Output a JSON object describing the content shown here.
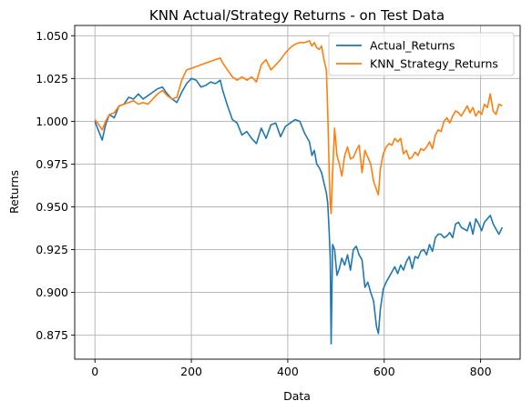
{
  "chart_data": {
    "type": "line",
    "title": "KNN Actual/Strategy Returns - on Test Data",
    "xlabel": "Data",
    "ylabel": "Returns",
    "xlim": [
      -42,
      882
    ],
    "ylim": [
      0.861,
      1.056
    ],
    "xticks": [
      0,
      200,
      400,
      600,
      800
    ],
    "yticks": [
      0.875,
      0.9,
      0.925,
      0.95,
      0.975,
      1.0,
      1.025,
      1.05
    ],
    "ytick_labels": [
      "0.875",
      "0.900",
      "0.925",
      "0.950",
      "0.975",
      "1.000",
      "1.025",
      "1.050"
    ],
    "grid": true,
    "legend_position": "top-right",
    "series": [
      {
        "name": "Actual_Returns",
        "color": "#1f77b4",
        "points": [
          [
            0,
            1.0
          ],
          [
            8,
            0.994
          ],
          [
            15,
            0.989
          ],
          [
            22,
            0.998
          ],
          [
            30,
            1.004
          ],
          [
            40,
            1.002
          ],
          [
            50,
            1.009
          ],
          [
            60,
            1.01
          ],
          [
            70,
            1.014
          ],
          [
            80,
            1.013
          ],
          [
            90,
            1.016
          ],
          [
            100,
            1.013
          ],
          [
            110,
            1.015
          ],
          [
            120,
            1.017
          ],
          [
            130,
            1.019
          ],
          [
            140,
            1.02
          ],
          [
            150,
            1.016
          ],
          [
            160,
            1.013
          ],
          [
            170,
            1.011
          ],
          [
            180,
            1.017
          ],
          [
            190,
            1.022
          ],
          [
            200,
            1.025
          ],
          [
            210,
            1.024
          ],
          [
            220,
            1.02
          ],
          [
            230,
            1.021
          ],
          [
            240,
            1.023
          ],
          [
            250,
            1.022
          ],
          [
            260,
            1.024
          ],
          [
            265,
            1.018
          ],
          [
            275,
            1.009
          ],
          [
            285,
            1.001
          ],
          [
            295,
            0.999
          ],
          [
            305,
            0.992
          ],
          [
            315,
            0.994
          ],
          [
            325,
            0.99
          ],
          [
            335,
            0.987
          ],
          [
            345,
            0.996
          ],
          [
            355,
            0.99
          ],
          [
            365,
            0.998
          ],
          [
            375,
            0.999
          ],
          [
            385,
            0.991
          ],
          [
            395,
            0.997
          ],
          [
            405,
            0.999
          ],
          [
            415,
            1.001
          ],
          [
            425,
            1.0
          ],
          [
            435,
            0.993
          ],
          [
            445,
            0.988
          ],
          [
            450,
            0.98
          ],
          [
            455,
            0.983
          ],
          [
            460,
            0.975
          ],
          [
            465,
            0.973
          ],
          [
            470,
            0.97
          ],
          [
            475,
            0.964
          ],
          [
            480,
            0.958
          ],
          [
            483,
            0.952
          ],
          [
            486,
            0.935
          ],
          [
            488,
            0.92
          ],
          [
            490,
            0.87
          ],
          [
            493,
            0.928
          ],
          [
            497,
            0.925
          ],
          [
            502,
            0.91
          ],
          [
            507,
            0.914
          ],
          [
            512,
            0.92
          ],
          [
            518,
            0.916
          ],
          [
            524,
            0.922
          ],
          [
            530,
            0.913
          ],
          [
            536,
            0.925
          ],
          [
            542,
            0.927
          ],
          [
            548,
            0.922
          ],
          [
            554,
            0.919
          ],
          [
            560,
            0.903
          ],
          [
            566,
            0.906
          ],
          [
            572,
            0.9
          ],
          [
            578,
            0.895
          ],
          [
            584,
            0.88
          ],
          [
            588,
            0.876
          ],
          [
            592,
            0.89
          ],
          [
            598,
            0.902
          ],
          [
            604,
            0.906
          ],
          [
            610,
            0.909
          ],
          [
            616,
            0.912
          ],
          [
            622,
            0.915
          ],
          [
            628,
            0.911
          ],
          [
            634,
            0.916
          ],
          [
            640,
            0.913
          ],
          [
            646,
            0.918
          ],
          [
            652,
            0.921
          ],
          [
            658,
            0.914
          ],
          [
            664,
            0.921
          ],
          [
            670,
            0.92
          ],
          [
            676,
            0.924
          ],
          [
            682,
            0.925
          ],
          [
            688,
            0.922
          ],
          [
            694,
            0.928
          ],
          [
            700,
            0.924
          ],
          [
            706,
            0.932
          ],
          [
            712,
            0.934
          ],
          [
            718,
            0.934
          ],
          [
            724,
            0.932
          ],
          [
            730,
            0.933
          ],
          [
            736,
            0.935
          ],
          [
            742,
            0.932
          ],
          [
            748,
            0.94
          ],
          [
            754,
            0.941
          ],
          [
            760,
            0.938
          ],
          [
            766,
            0.937
          ],
          [
            772,
            0.936
          ],
          [
            778,
            0.941
          ],
          [
            784,
            0.934
          ],
          [
            790,
            0.943
          ],
          [
            796,
            0.94
          ],
          [
            802,
            0.936
          ],
          [
            808,
            0.941
          ],
          [
            814,
            0.943
          ],
          [
            820,
            0.945
          ],
          [
            826,
            0.94
          ],
          [
            832,
            0.937
          ],
          [
            838,
            0.934
          ],
          [
            845,
            0.938
          ]
        ]
      },
      {
        "name": "KNN_Strategy_Returns",
        "color": "#ff7f0e",
        "points": [
          [
            0,
            1.001
          ],
          [
            8,
            0.998
          ],
          [
            15,
            0.995
          ],
          [
            22,
            1.0
          ],
          [
            30,
            1.004
          ],
          [
            40,
            1.005
          ],
          [
            50,
            1.009
          ],
          [
            60,
            1.01
          ],
          [
            70,
            1.011
          ],
          [
            80,
            1.012
          ],
          [
            90,
            1.01
          ],
          [
            100,
            1.011
          ],
          [
            110,
            1.01
          ],
          [
            120,
            1.013
          ],
          [
            130,
            1.016
          ],
          [
            140,
            1.018
          ],
          [
            150,
            1.015
          ],
          [
            160,
            1.013
          ],
          [
            170,
            1.014
          ],
          [
            180,
            1.024
          ],
          [
            190,
            1.03
          ],
          [
            200,
            1.031
          ],
          [
            210,
            1.032
          ],
          [
            220,
            1.033
          ],
          [
            230,
            1.034
          ],
          [
            240,
            1.035
          ],
          [
            250,
            1.036
          ],
          [
            260,
            1.037
          ],
          [
            265,
            1.034
          ],
          [
            275,
            1.03
          ],
          [
            285,
            1.026
          ],
          [
            295,
            1.024
          ],
          [
            305,
            1.026
          ],
          [
            315,
            1.024
          ],
          [
            325,
            1.026
          ],
          [
            335,
            1.023
          ],
          [
            345,
            1.033
          ],
          [
            355,
            1.036
          ],
          [
            365,
            1.03
          ],
          [
            375,
            1.033
          ],
          [
            385,
            1.036
          ],
          [
            395,
            1.04
          ],
          [
            405,
            1.043
          ],
          [
            415,
            1.045
          ],
          [
            425,
            1.046
          ],
          [
            435,
            1.046
          ],
          [
            445,
            1.047
          ],
          [
            450,
            1.044
          ],
          [
            455,
            1.046
          ],
          [
            460,
            1.043
          ],
          [
            465,
            1.042
          ],
          [
            470,
            1.044
          ],
          [
            475,
            1.036
          ],
          [
            480,
            1.03
          ],
          [
            483,
            1.005
          ],
          [
            486,
            0.97
          ],
          [
            488,
            0.952
          ],
          [
            490,
            0.946
          ],
          [
            493,
            0.97
          ],
          [
            497,
            0.996
          ],
          [
            502,
            0.98
          ],
          [
            507,
            0.975
          ],
          [
            512,
            0.968
          ],
          [
            518,
            0.98
          ],
          [
            524,
            0.985
          ],
          [
            530,
            0.978
          ],
          [
            536,
            0.979
          ],
          [
            542,
            0.983
          ],
          [
            548,
            0.986
          ],
          [
            554,
            0.97
          ],
          [
            560,
            0.983
          ],
          [
            566,
            0.979
          ],
          [
            572,
            0.975
          ],
          [
            578,
            0.965
          ],
          [
            584,
            0.96
          ],
          [
            588,
            0.957
          ],
          [
            592,
            0.972
          ],
          [
            598,
            0.981
          ],
          [
            604,
            0.985
          ],
          [
            610,
            0.987
          ],
          [
            616,
            0.986
          ],
          [
            622,
            0.99
          ],
          [
            628,
            0.988
          ],
          [
            634,
            0.99
          ],
          [
            640,
            0.981
          ],
          [
            646,
            0.983
          ],
          [
            652,
            0.978
          ],
          [
            658,
            0.979
          ],
          [
            664,
            0.982
          ],
          [
            670,
            0.98
          ],
          [
            676,
            0.984
          ],
          [
            682,
            0.983
          ],
          [
            688,
            0.985
          ],
          [
            694,
            0.988
          ],
          [
            700,
            0.984
          ],
          [
            706,
            0.992
          ],
          [
            712,
            0.995
          ],
          [
            718,
            0.994
          ],
          [
            724,
            1.0
          ],
          [
            730,
            1.002
          ],
          [
            736,
            0.999
          ],
          [
            742,
            1.003
          ],
          [
            748,
            1.006
          ],
          [
            754,
            1.005
          ],
          [
            760,
            1.003
          ],
          [
            766,
            1.006
          ],
          [
            772,
            1.009
          ],
          [
            778,
            1.005
          ],
          [
            784,
            1.008
          ],
          [
            790,
            1.003
          ],
          [
            796,
            1.006
          ],
          [
            802,
            1.004
          ],
          [
            808,
            1.01
          ],
          [
            814,
            1.008
          ],
          [
            820,
            1.016
          ],
          [
            826,
            1.006
          ],
          [
            832,
            1.004
          ],
          [
            838,
            1.01
          ],
          [
            845,
            1.009
          ]
        ]
      }
    ]
  }
}
